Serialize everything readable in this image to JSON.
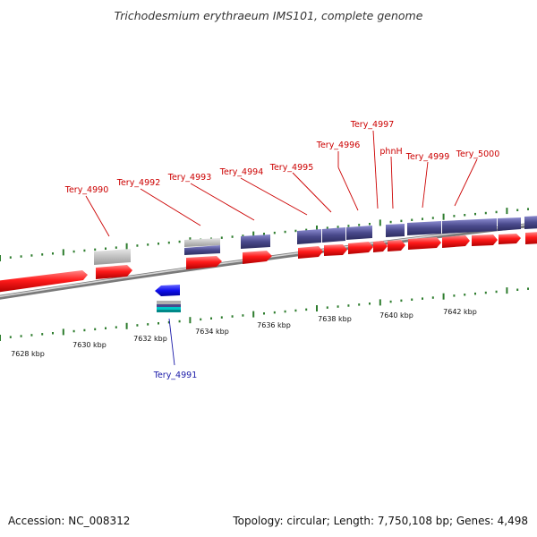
{
  "title": "Trichodesmium erythraeum IMS101, complete genome",
  "footer": {
    "accession": "Accession: NC_008312",
    "topology": "Topology: circular; Length: 7,750,108 bp; Genes: 4,498"
  },
  "scale_labels": [
    "7628 kbp",
    "7630 kbp",
    "7632 kbp",
    "7634 kbp",
    "7636 kbp",
    "7638 kbp",
    "7640 kbp",
    "7642 kbp"
  ],
  "gene_labels": [
    "Tery_4990",
    "Tery_4991",
    "Tery_4992",
    "Tery_4993",
    "Tery_4994",
    "Tery_4995",
    "Tery_4996",
    "Tery_4997",
    "phnH",
    "Tery_4999",
    "Tery_5000"
  ],
  "colors": {
    "forward_cds": "#ff0000",
    "reverse_cds": "#0000ff",
    "feature_purple": "#4a4a8c",
    "feature_gray": "#b0b0b0",
    "tick_green": "#2e7d2e",
    "label_forward": "#cc0000",
    "label_reverse": "#1a1aa8",
    "backbone": "#888888"
  }
}
